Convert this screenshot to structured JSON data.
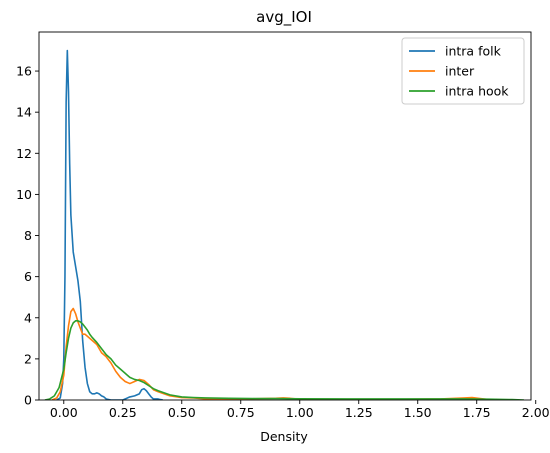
{
  "chart_data": {
    "type": "line",
    "title": "avg_IOI",
    "xlabel": "Density",
    "ylabel": "",
    "xlim": [
      -0.105,
      1.98
    ],
    "ylim": [
      0,
      17.9
    ],
    "xticks": [
      0.0,
      0.25,
      0.5,
      0.75,
      1.0,
      1.25,
      1.5,
      1.75,
      2.0
    ],
    "xtick_labels": [
      "0.00",
      "0.25",
      "0.50",
      "0.75",
      "1.00",
      "1.25",
      "1.50",
      "1.75",
      "2.00"
    ],
    "yticks": [
      0,
      2,
      4,
      6,
      8,
      10,
      12,
      14,
      16
    ],
    "ytick_labels": [
      "0",
      "2",
      "4",
      "6",
      "8",
      "10",
      "12",
      "14",
      "16"
    ],
    "grid": false,
    "legend_position": "top-right",
    "series": [
      {
        "name": "intra folk",
        "color": "#1f77b4",
        "x": [
          -0.03,
          -0.015,
          -0.005,
          0.0,
          0.005,
          0.01,
          0.015,
          0.02,
          0.025,
          0.03,
          0.04,
          0.05,
          0.06,
          0.07,
          0.08,
          0.09,
          0.1,
          0.11,
          0.12,
          0.13,
          0.14,
          0.15,
          0.16,
          0.17,
          0.18,
          0.2,
          0.22,
          0.25,
          0.28,
          0.3,
          0.32,
          0.33,
          0.34,
          0.35,
          0.36,
          0.37,
          0.38,
          0.39,
          0.4,
          0.41,
          0.42
        ],
        "y": [
          0.0,
          0.1,
          0.8,
          2.0,
          6.0,
          14.5,
          17.0,
          15.0,
          11.5,
          9.0,
          7.2,
          6.5,
          5.8,
          4.8,
          2.9,
          1.6,
          0.8,
          0.4,
          0.3,
          0.3,
          0.35,
          0.3,
          0.2,
          0.15,
          0.05,
          0.0,
          0.0,
          0.0,
          0.15,
          0.2,
          0.3,
          0.5,
          0.55,
          0.45,
          0.3,
          0.15,
          0.05,
          0.05,
          0.05,
          0.02,
          0.0
        ]
      },
      {
        "name": "inter",
        "color": "#ff7f0e",
        "x": [
          -0.05,
          -0.03,
          -0.015,
          0.0,
          0.01,
          0.02,
          0.03,
          0.04,
          0.05,
          0.06,
          0.07,
          0.08,
          0.09,
          0.1,
          0.12,
          0.14,
          0.16,
          0.18,
          0.2,
          0.22,
          0.24,
          0.26,
          0.28,
          0.3,
          0.32,
          0.34,
          0.36,
          0.38,
          0.4,
          0.45,
          0.5,
          0.55,
          0.6,
          0.7,
          0.8,
          0.9,
          0.93,
          0.96,
          1.0,
          1.2,
          1.4,
          1.6,
          1.7,
          1.73,
          1.76,
          1.8
        ],
        "y": [
          0.0,
          0.1,
          0.4,
          1.2,
          2.6,
          3.6,
          4.3,
          4.45,
          4.2,
          3.8,
          3.5,
          3.2,
          3.2,
          3.1,
          2.9,
          2.7,
          2.3,
          2.1,
          1.8,
          1.4,
          1.1,
          0.9,
          0.8,
          0.9,
          1.0,
          0.95,
          0.75,
          0.5,
          0.4,
          0.2,
          0.12,
          0.1,
          0.06,
          0.05,
          0.06,
          0.08,
          0.1,
          0.08,
          0.04,
          0.03,
          0.03,
          0.05,
          0.1,
          0.12,
          0.08,
          0.02
        ]
      },
      {
        "name": "intra hook",
        "color": "#2ca02c",
        "x": [
          -0.08,
          -0.06,
          -0.04,
          -0.02,
          0.0,
          0.01,
          0.02,
          0.03,
          0.04,
          0.05,
          0.06,
          0.07,
          0.08,
          0.09,
          0.1,
          0.11,
          0.12,
          0.14,
          0.16,
          0.18,
          0.2,
          0.22,
          0.24,
          0.26,
          0.28,
          0.3,
          0.32,
          0.34,
          0.36,
          0.38,
          0.4,
          0.45,
          0.5,
          0.55,
          0.6,
          0.7,
          0.8,
          0.9,
          1.0,
          1.2,
          1.4,
          1.6,
          1.7,
          1.8,
          1.9,
          1.95
        ],
        "y": [
          0.0,
          0.05,
          0.2,
          0.6,
          1.5,
          2.3,
          3.0,
          3.5,
          3.75,
          3.85,
          3.85,
          3.8,
          3.7,
          3.55,
          3.4,
          3.2,
          3.05,
          2.8,
          2.5,
          2.2,
          2.0,
          1.7,
          1.5,
          1.3,
          1.1,
          1.0,
          0.95,
          0.85,
          0.7,
          0.55,
          0.45,
          0.25,
          0.15,
          0.12,
          0.1,
          0.08,
          0.07,
          0.07,
          0.06,
          0.05,
          0.05,
          0.05,
          0.05,
          0.04,
          0.02,
          0.0
        ]
      }
    ]
  }
}
